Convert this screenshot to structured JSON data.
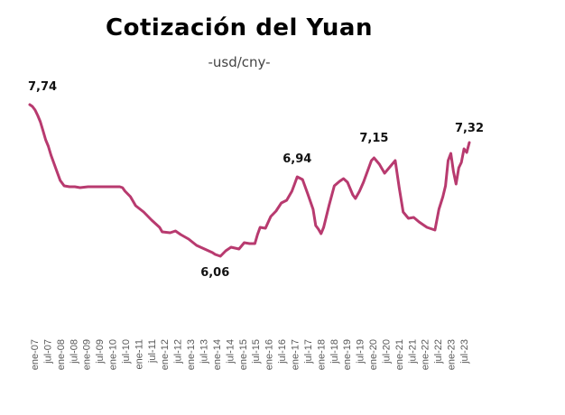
{
  "chart_data": {
    "type": "line",
    "title": "Cotización  del Yuan",
    "subtitle": "-usd/cny-",
    "xlabel": "",
    "ylabel": "",
    "series_color": "#B83A6F",
    "grid": false,
    "legend": "none",
    "ylim": [
      5.5,
      8.0
    ],
    "tick_labels": [
      "ene-07",
      "jul-07",
      "ene-08",
      "jul-08",
      "ene-09",
      "jul-09",
      "ene-10",
      "jul-10",
      "ene-11",
      "jul-11",
      "ene-12",
      "jul-12",
      "ene-13",
      "jul-13",
      "ene-14",
      "jul-14",
      "ene-15",
      "jul-15",
      "ene-16",
      "jul-16",
      "ene-17",
      "jul-17",
      "ene-18",
      "jul-18",
      "ene-19",
      "jul-19",
      "ene-20",
      "jul-20",
      "ene-21",
      "jul-21",
      "ene-22",
      "jul-22",
      "ene-23",
      "jul-23"
    ],
    "series": [
      {
        "x": [
          2007.0,
          2007.1,
          2007.2,
          2007.3,
          2007.4,
          2007.5,
          2007.6,
          2007.7,
          2007.8,
          2007.9,
          2008.0,
          2008.15,
          2008.3,
          2008.5,
          2008.7,
          2008.9,
          2009.2,
          2009.5,
          2009.8,
          2010.0,
          2010.2,
          2010.4,
          2010.5,
          2010.6,
          2010.8,
          2011.0,
          2011.3,
          2011.6,
          2011.9,
          2012.0,
          2012.3,
          2012.5,
          2012.7,
          2013.0,
          2013.3,
          2013.6,
          2013.9,
          2014.0,
          2014.2,
          2014.4,
          2014.6,
          2014.9,
          2015.1,
          2015.3,
          2015.5,
          2015.6,
          2015.7,
          2015.9,
          2016.1,
          2016.3,
          2016.5,
          2016.7,
          2016.9,
          2017.0,
          2017.1,
          2017.3,
          2017.5,
          2017.7,
          2017.8,
          2017.9,
          2018.0,
          2018.1,
          2018.3,
          2018.5,
          2018.7,
          2018.85,
          2019.0,
          2019.2,
          2019.3,
          2019.45,
          2019.6,
          2019.75,
          2019.9,
          2020.0,
          2020.2,
          2020.4,
          2020.6,
          2020.8,
          2020.95,
          2021.1,
          2021.3,
          2021.5,
          2021.7,
          2021.9,
          2022.0,
          2022.1,
          2022.3,
          2022.45,
          2022.6,
          2022.7,
          2022.8,
          2022.9,
          2023.0,
          2023.1,
          2023.2,
          2023.3,
          2023.4,
          2023.5,
          2023.6
        ],
        "values": [
          7.74,
          7.72,
          7.68,
          7.62,
          7.55,
          7.45,
          7.35,
          7.28,
          7.18,
          7.1,
          7.02,
          6.9,
          6.84,
          6.83,
          6.83,
          6.82,
          6.83,
          6.83,
          6.83,
          6.83,
          6.83,
          6.83,
          6.82,
          6.78,
          6.72,
          6.62,
          6.55,
          6.46,
          6.38,
          6.33,
          6.32,
          6.34,
          6.3,
          6.25,
          6.18,
          6.14,
          6.1,
          6.08,
          6.06,
          6.12,
          6.16,
          6.14,
          6.21,
          6.2,
          6.2,
          6.3,
          6.38,
          6.37,
          6.5,
          6.56,
          6.65,
          6.68,
          6.78,
          6.86,
          6.94,
          6.91,
          6.75,
          6.58,
          6.4,
          6.36,
          6.31,
          6.38,
          6.62,
          6.84,
          6.89,
          6.92,
          6.88,
          6.74,
          6.7,
          6.78,
          6.88,
          7.0,
          7.12,
          7.15,
          7.08,
          6.98,
          7.05,
          7.12,
          6.82,
          6.55,
          6.48,
          6.49,
          6.44,
          6.4,
          6.38,
          6.37,
          6.35,
          6.58,
          6.72,
          6.84,
          7.12,
          7.2,
          7.0,
          6.86,
          7.04,
          7.1,
          7.25,
          7.21,
          7.32
        ]
      }
    ],
    "annotations": [
      {
        "x": 2007.0,
        "value": 7.74,
        "text": "7,74"
      },
      {
        "x": 2014.2,
        "value": 6.06,
        "text": "6,06"
      },
      {
        "x": 2017.1,
        "value": 6.94,
        "text": "6,94"
      },
      {
        "x": 2020.0,
        "value": 7.15,
        "text": "7,15"
      },
      {
        "x": 2023.6,
        "value": 7.32,
        "text": "7,32"
      }
    ]
  }
}
